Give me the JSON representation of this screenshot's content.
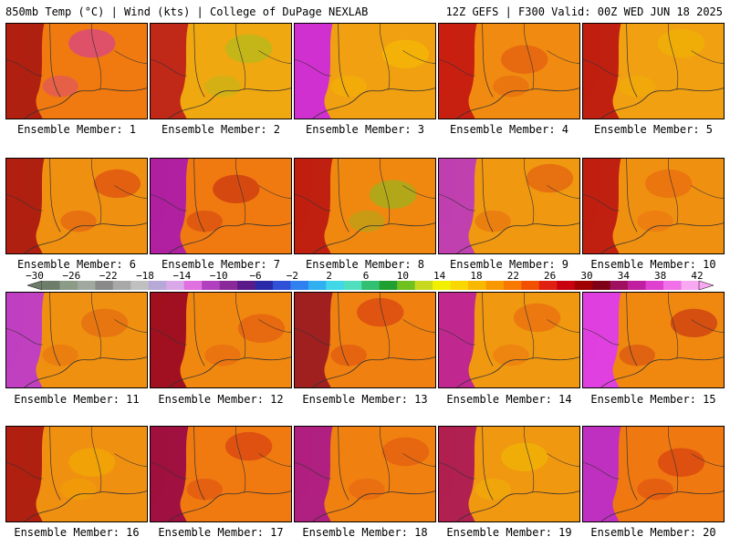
{
  "header": {
    "left": "850mb Temp (°C) | Wind (kts) | College of DuPage NEXLAB",
    "right": "12Z GEFS | F300 Valid: 00Z WED JUN 18 2025"
  },
  "colorbar": {
    "tick_labels": [
      "−30",
      "−26",
      "−22",
      "−18",
      "−14",
      "−10",
      "−6",
      "−2",
      "2",
      "6",
      "10",
      "14",
      "18",
      "22",
      "26",
      "30",
      "34",
      "38",
      "42"
    ],
    "colors": [
      "#6e7d6a",
      "#8c9a88",
      "#a0a8a0",
      "#8a8a8a",
      "#a8a8a8",
      "#c0c0c0",
      "#b8a8d8",
      "#d8a8e8",
      "#e070e0",
      "#b040c0",
      "#8a2a9a",
      "#5a1a8a",
      "#2a2aa8",
      "#3050d8",
      "#3080f0",
      "#30b0f0",
      "#40d8e8",
      "#50e0c0",
      "#30c070",
      "#20a030",
      "#70c020",
      "#c8d820",
      "#f0f000",
      "#f8d800",
      "#f8b800",
      "#f89800",
      "#f87800",
      "#f05000",
      "#e02010",
      "#c80010",
      "#a00000",
      "#800018",
      "#a01060",
      "#c020a0",
      "#e040d0",
      "#f070e8",
      "#f8a8f0"
    ]
  },
  "panels": [
    {
      "label": "Ensemble Member: 1",
      "bg": "#f07a10",
      "west": "#b02010",
      "blob": "#d030b0"
    },
    {
      "label": "Ensemble Member: 2",
      "bg": "#f0a810",
      "west": "#c02818",
      "blob": "#a0c020"
    },
    {
      "label": "Ensemble Member: 3",
      "bg": "#f0a010",
      "west": "#d030d0",
      "blob": "#f8c000"
    },
    {
      "label": "Ensemble Member: 4",
      "bg": "#f08a10",
      "west": "#c82010",
      "blob": "#e05010"
    },
    {
      "label": "Ensemble Member: 5",
      "bg": "#f0a010",
      "west": "#c02010",
      "blob": "#f0b800"
    },
    {
      "label": "Ensemble Member: 6",
      "bg": "#f09010",
      "west": "#b02010",
      "blob": "#d83810"
    },
    {
      "label": "Ensemble Member: 7",
      "bg": "#f07a10",
      "west": "#b020a0",
      "blob": "#c02010"
    },
    {
      "label": "Ensemble Member: 8",
      "bg": "#f08810",
      "west": "#c02010",
      "blob": "#80c020"
    },
    {
      "label": "Ensemble Member: 9",
      "bg": "#f09810",
      "west": "#c040b0",
      "blob": "#e05010"
    },
    {
      "label": "Ensemble Member: 10",
      "bg": "#f09010",
      "west": "#c02010",
      "blob": "#e86010"
    },
    {
      "label": "Ensemble Member: 11",
      "bg": "#f09010",
      "west": "#c040c0",
      "blob": "#e06010"
    },
    {
      "label": "Ensemble Member: 12",
      "bg": "#f08810",
      "west": "#a01020",
      "blob": "#e05010"
    },
    {
      "label": "Ensemble Member: 13",
      "bg": "#f08010",
      "west": "#a02020",
      "blob": "#d03010"
    },
    {
      "label": "Ensemble Member: 14",
      "bg": "#f09810",
      "west": "#c02890",
      "blob": "#e86010"
    },
    {
      "label": "Ensemble Member: 15",
      "bg": "#f08810",
      "west": "#e040e0",
      "blob": "#c02010"
    },
    {
      "label": "Ensemble Member: 16",
      "bg": "#f09010",
      "west": "#b02010",
      "blob": "#f0b000"
    },
    {
      "label": "Ensemble Member: 17",
      "bg": "#f07a10",
      "west": "#a01040",
      "blob": "#d03010"
    },
    {
      "label": "Ensemble Member: 18",
      "bg": "#f08010",
      "west": "#b02080",
      "blob": "#e05010"
    },
    {
      "label": "Ensemble Member: 19",
      "bg": "#f09810",
      "west": "#b02050",
      "blob": "#f0c000"
    },
    {
      "label": "Ensemble Member: 20",
      "bg": "#f07810",
      "west": "#c030c0",
      "blob": "#d03010"
    }
  ]
}
